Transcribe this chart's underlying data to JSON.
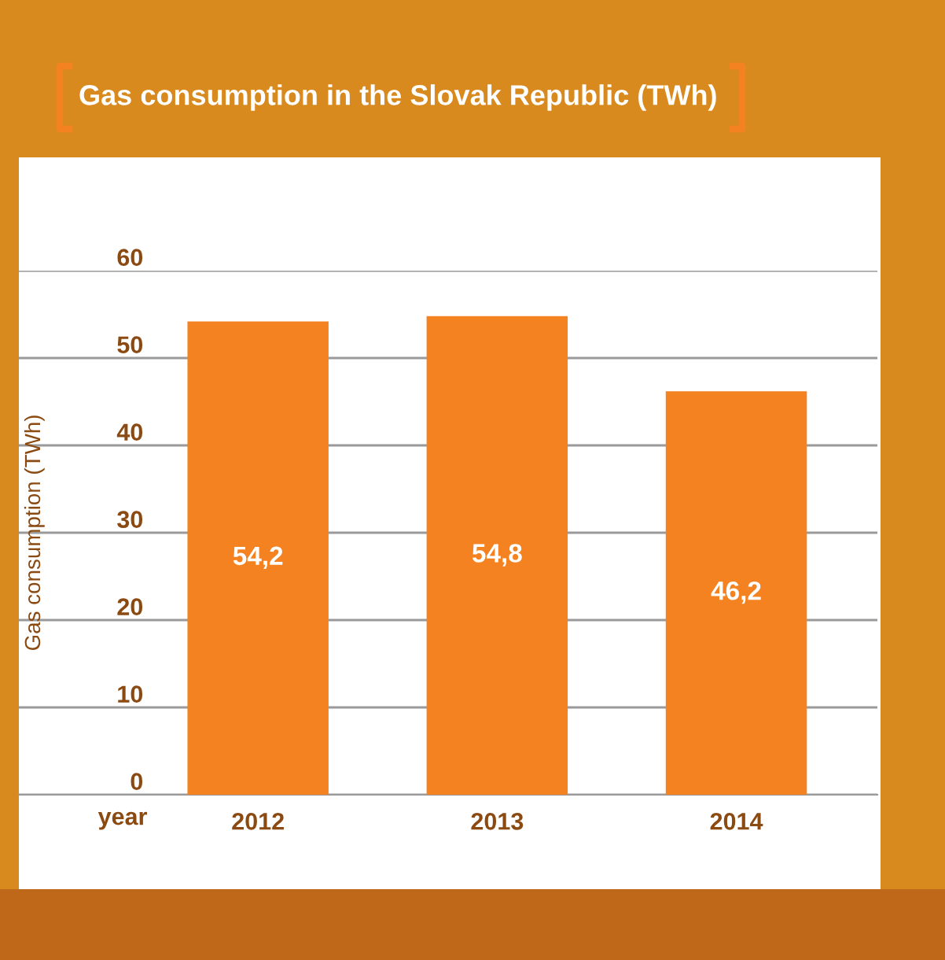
{
  "chart_data": {
    "type": "bar",
    "title": "Gas consumption in the Slovak Republic (TWh)",
    "xlabel": "year",
    "ylabel": "Gas consumption (TWh)",
    "categories": [
      "2012",
      "2013",
      "2014"
    ],
    "values": [
      54.2,
      54.8,
      46.2
    ],
    "color": "#f58220",
    "value_labels": [
      "54,2",
      "54,8",
      "46,2"
    ],
    "ylim": [
      0,
      60
    ],
    "yticks": [
      0,
      10,
      20,
      30,
      40,
      50,
      60
    ],
    "grid": "y"
  }
}
